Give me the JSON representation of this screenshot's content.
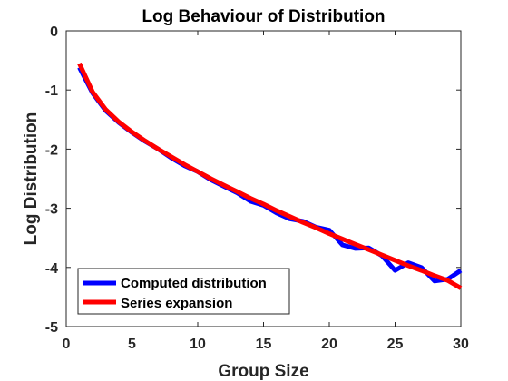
{
  "chart_data": {
    "type": "line",
    "title": "Log Behaviour of Distribution",
    "xlabel": "Group Size",
    "ylabel": "Log Distribution",
    "xlim": [
      0,
      30
    ],
    "ylim": [
      -5,
      0
    ],
    "xticks": [
      0,
      5,
      10,
      15,
      20,
      25,
      30
    ],
    "yticks": [
      0,
      -1,
      -2,
      -3,
      -4,
      -5
    ],
    "grid": false,
    "legend_position": "bottom-left",
    "series": [
      {
        "name": "Computed distribution",
        "color": "#0000ff",
        "x": [
          1,
          2,
          3,
          4,
          5,
          6,
          7,
          8,
          9,
          10,
          11,
          12,
          13,
          14,
          15,
          16,
          17,
          18,
          19,
          20,
          21,
          22,
          23,
          24,
          25,
          26,
          27,
          28,
          29,
          30
        ],
        "values": [
          -0.62,
          -1.05,
          -1.35,
          -1.55,
          -1.72,
          -1.87,
          -2.0,
          -2.15,
          -2.28,
          -2.38,
          -2.52,
          -2.63,
          -2.74,
          -2.88,
          -2.95,
          -3.08,
          -3.18,
          -3.22,
          -3.32,
          -3.37,
          -3.62,
          -3.68,
          -3.67,
          -3.8,
          -4.05,
          -3.92,
          -4.0,
          -4.23,
          -4.2,
          -4.05
        ]
      },
      {
        "name": "Series expansion",
        "color": "#ff0000",
        "x": [
          1,
          2,
          3,
          4,
          5,
          6,
          7,
          8,
          9,
          10,
          11,
          12,
          13,
          14,
          15,
          16,
          17,
          18,
          19,
          20,
          21,
          22,
          23,
          24,
          25,
          26,
          27,
          28,
          29,
          30
        ],
        "values": [
          -0.55,
          -1.03,
          -1.33,
          -1.54,
          -1.71,
          -1.86,
          -2.0,
          -2.13,
          -2.26,
          -2.38,
          -2.5,
          -2.61,
          -2.72,
          -2.83,
          -2.93,
          -3.04,
          -3.14,
          -3.24,
          -3.33,
          -3.43,
          -3.52,
          -3.61,
          -3.7,
          -3.79,
          -3.88,
          -3.97,
          -4.05,
          -4.14,
          -4.22,
          -4.35
        ]
      }
    ]
  }
}
